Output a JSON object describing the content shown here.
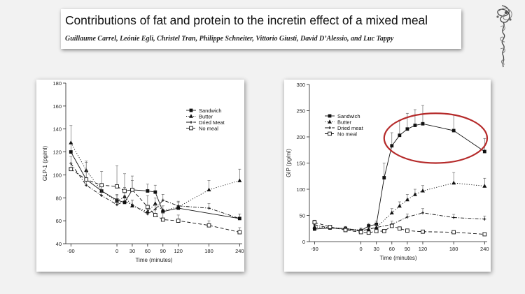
{
  "slide": {
    "title": "Contributions of fat and protein to the incretin effect of a mixed meal",
    "authors": "Guillaume Carrel, Leónie Egli, Christel Tran, Philippe Schneiter, Vittorio Giusti, David D’Alessio, and Luc Tappy",
    "logo_icon": "protein-structure-icon"
  },
  "chart_data": [
    {
      "type": "line",
      "title": "",
      "xlabel": "Time (minutes)",
      "ylabel": "GLP-1 (pg/ml)",
      "xlim": [
        -100,
        245
      ],
      "ylim": [
        40,
        180
      ],
      "x_ticks": [
        -90,
        0,
        30,
        60,
        90,
        120,
        180,
        240
      ],
      "y_ticks": [
        40,
        60,
        80,
        100,
        120,
        140,
        160,
        180
      ],
      "grid": false,
      "legend_position": "top-right",
      "series": [
        {
          "name": "Sandwich",
          "marker": "filled-square",
          "dash": "solid",
          "x": [
            -90,
            -60,
            -30,
            0,
            15,
            30,
            60,
            75,
            90,
            120,
            240
          ],
          "y": [
            120,
            96,
            86,
            78,
            76,
            87,
            86,
            85,
            68,
            71,
            62
          ],
          "err": [
            8,
            6,
            5,
            5,
            5,
            8,
            6,
            6,
            5,
            5,
            4
          ]
        },
        {
          "name": "Butter",
          "marker": "filled-triangle",
          "dash": "dotted",
          "x": [
            -90,
            -60,
            -30,
            0,
            15,
            30,
            60,
            75,
            90,
            120,
            180,
            240
          ],
          "y": [
            128,
            104,
            86,
            77,
            81,
            73,
            68,
            75,
            69,
            72,
            87,
            95
          ],
          "err": [
            15,
            8,
            5,
            5,
            8,
            5,
            4,
            5,
            4,
            5,
            8,
            10
          ]
        },
        {
          "name": "Dried Meat",
          "marker": "small-plus",
          "dash": "dashdot",
          "x": [
            -90,
            -60,
            -30,
            0,
            15,
            30,
            60,
            75,
            90,
            120,
            180,
            240
          ],
          "y": [
            110,
            91,
            82,
            74,
            77,
            74,
            66,
            70,
            78,
            73,
            71,
            62
          ],
          "err": [
            6,
            5,
            5,
            5,
            5,
            4,
            4,
            4,
            5,
            4,
            4,
            4
          ]
        },
        {
          "name": "No meal",
          "marker": "open-square",
          "dash": "dashed",
          "x": [
            -90,
            -60,
            -30,
            0,
            15,
            30,
            60,
            75,
            90,
            120,
            180,
            240
          ],
          "y": [
            105,
            96,
            91,
            90,
            86,
            87,
            72,
            65,
            61,
            60,
            56,
            50
          ],
          "err": [
            5,
            15,
            12,
            18,
            15,
            12,
            10,
            8,
            6,
            5,
            4,
            4
          ]
        }
      ]
    },
    {
      "type": "line",
      "title": "",
      "xlabel": "Time (minutes)",
      "ylabel": "GIP (pg/ml)",
      "xlim": [
        -100,
        245
      ],
      "ylim": [
        0,
        300
      ],
      "x_ticks": [
        -90,
        0,
        30,
        60,
        90,
        120,
        180,
        240
      ],
      "y_ticks": [
        0,
        50,
        100,
        150,
        200,
        250,
        300
      ],
      "grid": false,
      "legend_position": "top-left",
      "highlight": {
        "shape": "ellipse",
        "color": "#b52a2a",
        "x_range": [
          45,
          245
        ],
        "y_range": [
          150,
          245
        ]
      },
      "series": [
        {
          "name": "Sandwich",
          "marker": "filled-square",
          "dash": "solid",
          "x": [
            -90,
            -60,
            -30,
            0,
            15,
            30,
            45,
            60,
            75,
            90,
            105,
            120,
            180,
            240
          ],
          "y": [
            24,
            26,
            25,
            21,
            30,
            33,
            122,
            183,
            203,
            215,
            222,
            225,
            212,
            172
          ],
          "err": [
            4,
            4,
            4,
            3,
            5,
            6,
            28,
            25,
            28,
            30,
            30,
            35,
            30,
            25
          ]
        },
        {
          "name": "Butter",
          "marker": "filled-triangle",
          "dash": "dotted",
          "x": [
            -90,
            -60,
            -30,
            0,
            15,
            30,
            60,
            75,
            90,
            105,
            120,
            180,
            240
          ],
          "y": [
            28,
            27,
            25,
            22,
            23,
            27,
            55,
            68,
            80,
            90,
            97,
            112,
            106
          ],
          "err": [
            4,
            4,
            4,
            4,
            4,
            5,
            8,
            8,
            10,
            10,
            10,
            20,
            15
          ]
        },
        {
          "name": "Dried meat",
          "marker": "small-plus",
          "dash": "dashdot",
          "x": [
            -90,
            -60,
            -30,
            0,
            15,
            30,
            60,
            90,
            120,
            180,
            240
          ],
          "y": [
            32,
            26,
            24,
            20,
            24,
            27,
            33,
            47,
            55,
            46,
            43
          ],
          "err": [
            5,
            4,
            4,
            3,
            4,
            4,
            6,
            6,
            8,
            6,
            6
          ]
        },
        {
          "name": "No meal",
          "marker": "open-square",
          "dash": "dashed",
          "x": [
            -90,
            -60,
            -30,
            0,
            15,
            30,
            45,
            60,
            75,
            90,
            120,
            180,
            240
          ],
          "y": [
            37,
            28,
            22,
            18,
            17,
            20,
            20,
            30,
            25,
            21,
            19,
            18,
            14
          ],
          "err": [
            4,
            3,
            3,
            3,
            3,
            3,
            3,
            4,
            3,
            3,
            3,
            3,
            2
          ]
        }
      ]
    }
  ]
}
